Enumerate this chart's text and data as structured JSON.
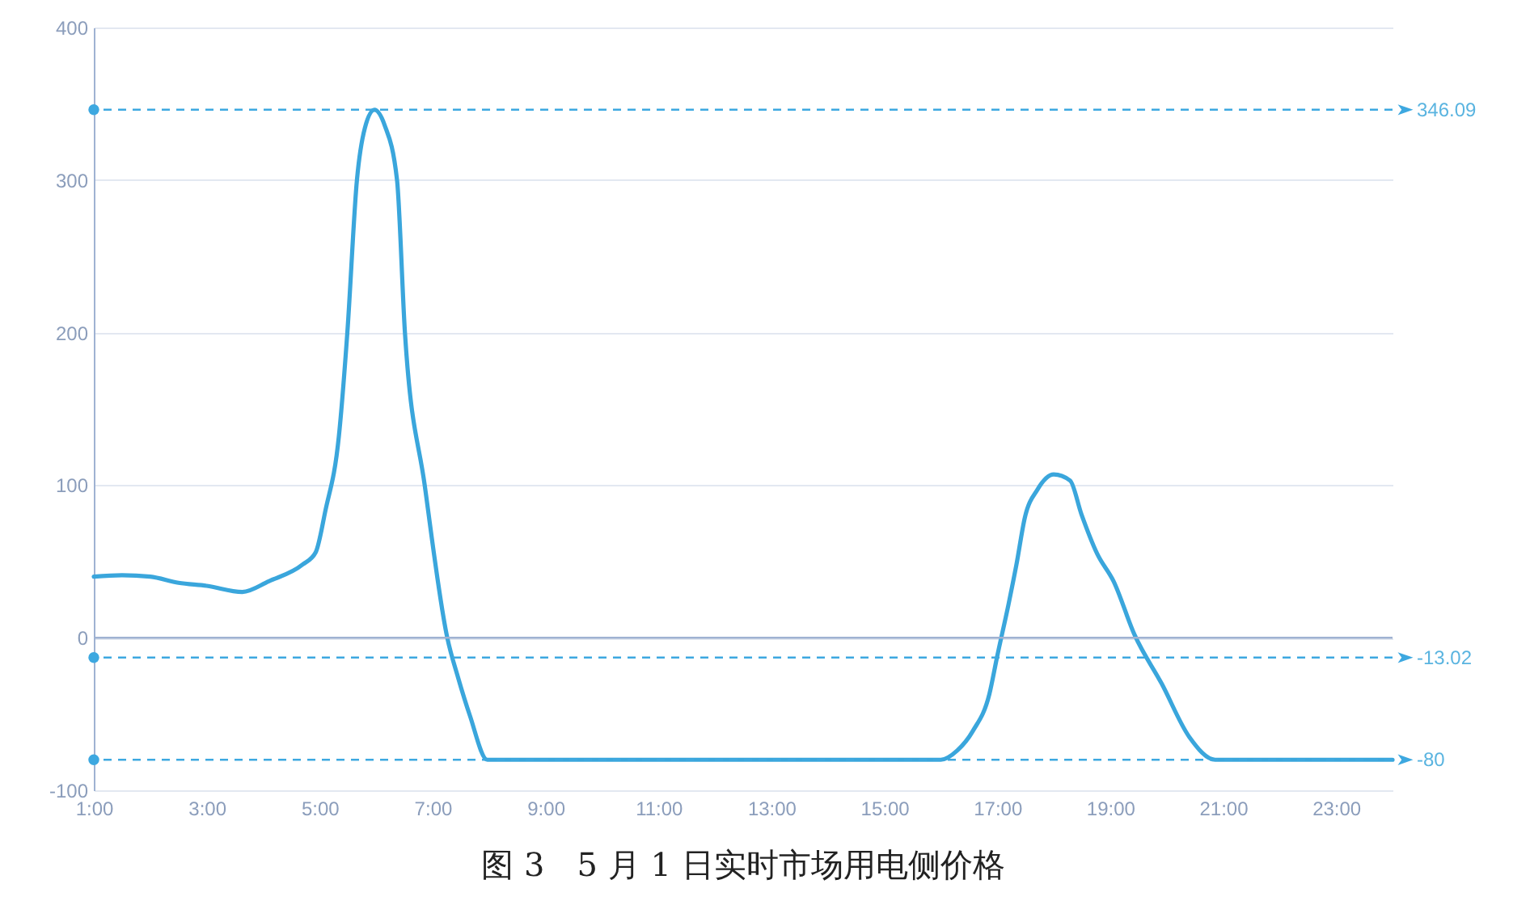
{
  "chart_data": {
    "type": "line",
    "title": "图 3　5 月 1 日实时市场用电侧价格",
    "x": [
      1,
      1.5,
      2,
      2.5,
      3,
      3.63,
      4.1,
      4.7,
      4.93,
      5.1,
      5.34,
      5.49,
      5.66,
      5.8,
      5.97,
      6.15,
      6.37,
      6.51,
      6.86,
      7.26,
      7.45,
      7.66,
      7.97,
      16,
      16.29,
      16.57,
      16.86,
      17,
      17.2,
      17.34,
      17.49,
      17.71,
      18,
      18.29,
      18.49,
      18.77,
      19.06,
      19.43,
      19.91,
      20.4,
      20.86,
      24
    ],
    "series": [
      {
        "color": "#3aa6dc",
        "values": [
          40,
          41,
          40,
          36,
          34,
          30,
          37,
          48,
          56,
          83,
          132,
          200,
          300,
          334,
          346,
          336,
          300,
          200,
          100,
          0,
          -26,
          -51,
          -80,
          -80,
          -74,
          -61,
          -37,
          -12,
          22,
          48,
          79,
          97,
          107,
          103,
          81,
          55,
          37,
          2,
          -30,
          -65,
          -80,
          -80
        ]
      }
    ],
    "xlim": [
      1,
      24
    ],
    "xticks": [
      {
        "value": 1,
        "label": "1:00"
      },
      {
        "value": 3,
        "label": "3:00"
      },
      {
        "value": 5,
        "label": "5:00"
      },
      {
        "value": 7,
        "label": "7:00"
      },
      {
        "value": 9,
        "label": "9:00"
      },
      {
        "value": 11,
        "label": "11:00"
      },
      {
        "value": 13,
        "label": "13:00"
      },
      {
        "value": 15,
        "label": "15:00"
      },
      {
        "value": 17,
        "label": "17:00"
      },
      {
        "value": 19,
        "label": "19:00"
      },
      {
        "value": 21,
        "label": "21:00"
      },
      {
        "value": 23,
        "label": "23:00"
      }
    ],
    "ylim": [
      -100,
      400
    ],
    "yticks": [
      -100,
      0,
      100,
      200,
      300,
      400
    ],
    "grid": "y",
    "marker": "none",
    "line_style": "solid",
    "ref_lines": [
      {
        "axis": "y",
        "value": 0,
        "color": "#9fb2d2",
        "line_style": "solid"
      },
      {
        "axis": "y",
        "value": 346.09,
        "label": "346.09",
        "color": "#3da8e0",
        "line_style": "dashed"
      },
      {
        "axis": "y",
        "value": -13.02,
        "label": "-13.02",
        "color": "#3da8e0",
        "line_style": "dashed"
      },
      {
        "axis": "y",
        "value": -80,
        "label": "-80",
        "color": "#3da8e0",
        "line_style": "dashed"
      }
    ]
  }
}
